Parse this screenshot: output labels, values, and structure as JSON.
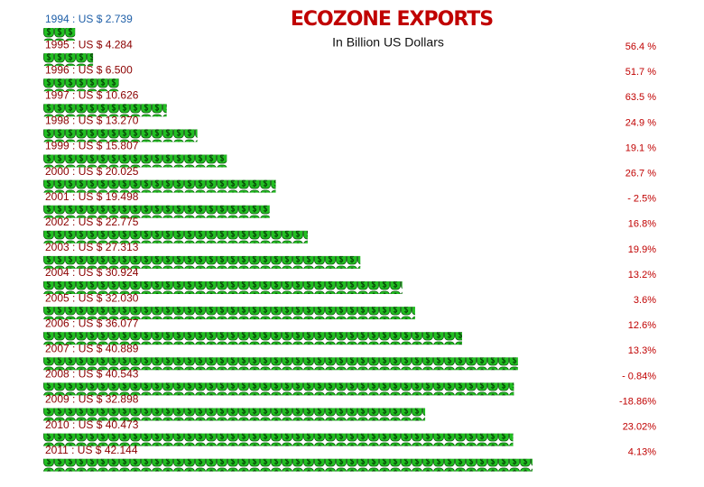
{
  "chart_data": {
    "type": "bar",
    "orientation": "horizontal",
    "title": "ECOZONE EXPORTS",
    "subtitle": "In Billion US Dollars",
    "values": [
      2.739,
      4.284,
      6.5,
      10.626,
      13.27,
      15.807,
      20.025,
      19.498,
      22.775,
      27.313,
      30.924,
      32.03,
      36.077,
      40.889,
      40.543,
      32.898,
      40.473,
      42.144
    ],
    "value_labels": [
      "1994 : US $  2.739",
      "1995 : US $  4.284",
      "1996 : US $  6.500",
      "1997 : US $  10.626",
      "1998 : US $  13.270",
      "1999 : US $  15.807",
      "2000 : US $  20.025",
      "2001 : US $  19.498",
      "2002 : US $  22.775",
      "2003 : US $  27.313",
      "2004 : US $  30.924",
      "2005 : US $  32.030",
      "2006 : US $  36.077",
      "2007 : US $  40.889",
      "2008 : US $  40.543",
      "2009 : US $  32.898",
      "2010 : US $  40.473",
      "2011 : US $  42.144"
    ],
    "color": "#22c022",
    "growth": {
      "values": [
        null,
        56.4,
        51.7,
        63.5,
        24.9,
        19.1,
        26.7,
        -2.5,
        16.8,
        19.9,
        13.2,
        3.6,
        12.6,
        13.3,
        -0.84,
        -18.86,
        23.02,
        4.13
      ],
      "value_labels": [
        null,
        "56.4 %",
        "51.7 %",
        "63.5 %",
        "24.9 %",
        "19.1 %",
        "26.7 %",
        "- 2.5%",
        "16.8%",
        "19.9%",
        "13.2%",
        "3.6%",
        "12.6%",
        "13.3%",
        "- 0.84%",
        "-18.86%",
        "23.02%",
        "4.13%"
      ]
    }
  }
}
